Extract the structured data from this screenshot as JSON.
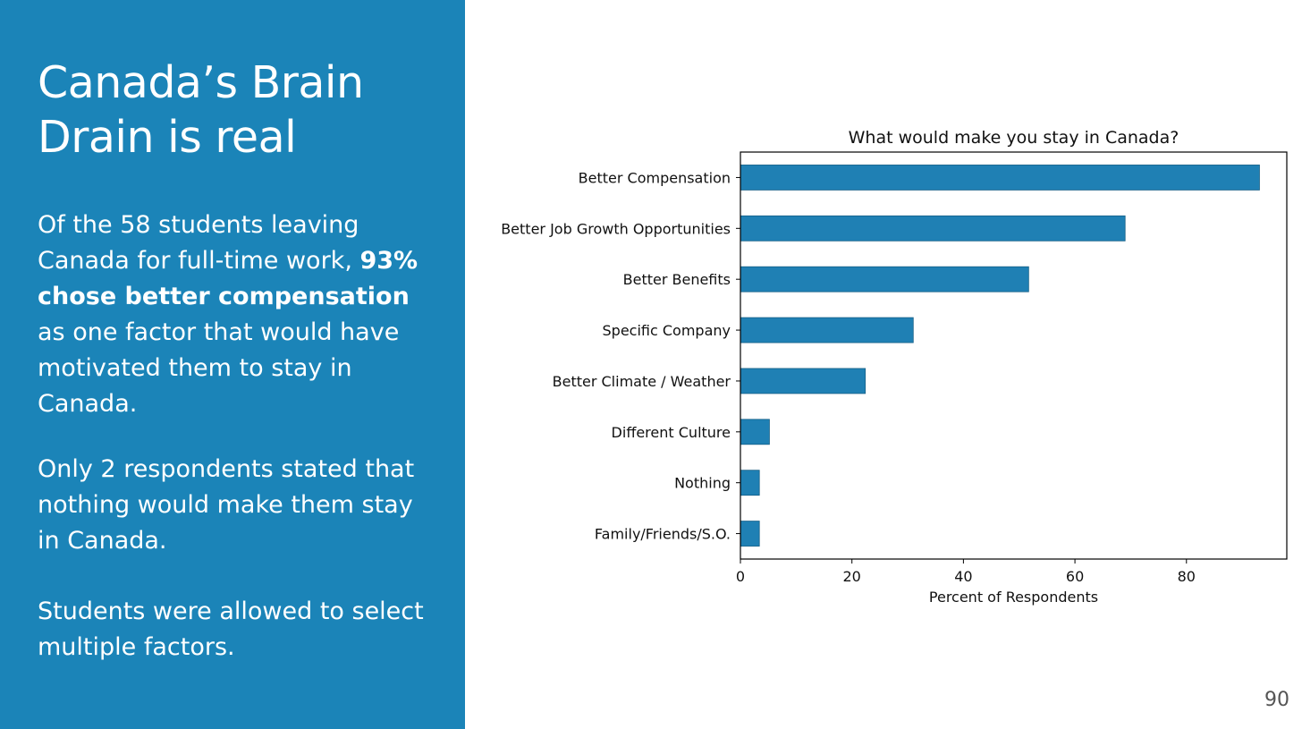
{
  "slide": {
    "title": "Canada’s Brain Drain is real",
    "paragraph1": {
      "before": "Of the 58 students leaving Canada for full-time work, ",
      "bold": "93% chose better compensation",
      "after": " as one factor that would have motivated them to stay in Canada."
    },
    "paragraph2": "Only 2 respondents stated that nothing would make them stay in Canada.",
    "paragraph3": "Students were allowed to select multiple factors.",
    "page_number": "90"
  },
  "colors": {
    "panel": "#1b84b8",
    "bar": "#1f80b4",
    "bar_edge": "#155f86"
  },
  "chart_data": {
    "type": "bar",
    "orientation": "horizontal",
    "title": "What would make you stay in Canada?",
    "xlabel": "Percent of Respondents",
    "ylabel": "",
    "xlim": [
      0,
      98
    ],
    "xticks": [
      0,
      20,
      40,
      60,
      80
    ],
    "grid": false,
    "categories": [
      "Better Compensation",
      "Better Job Growth Opportunities",
      "Better Benefits",
      "Specific Company",
      "Better Climate / Weather",
      "Different Culture",
      "Nothing",
      "Family/Friends/S.O."
    ],
    "values": [
      93.1,
      69.0,
      51.7,
      31.0,
      22.4,
      5.2,
      3.4,
      3.4
    ]
  }
}
